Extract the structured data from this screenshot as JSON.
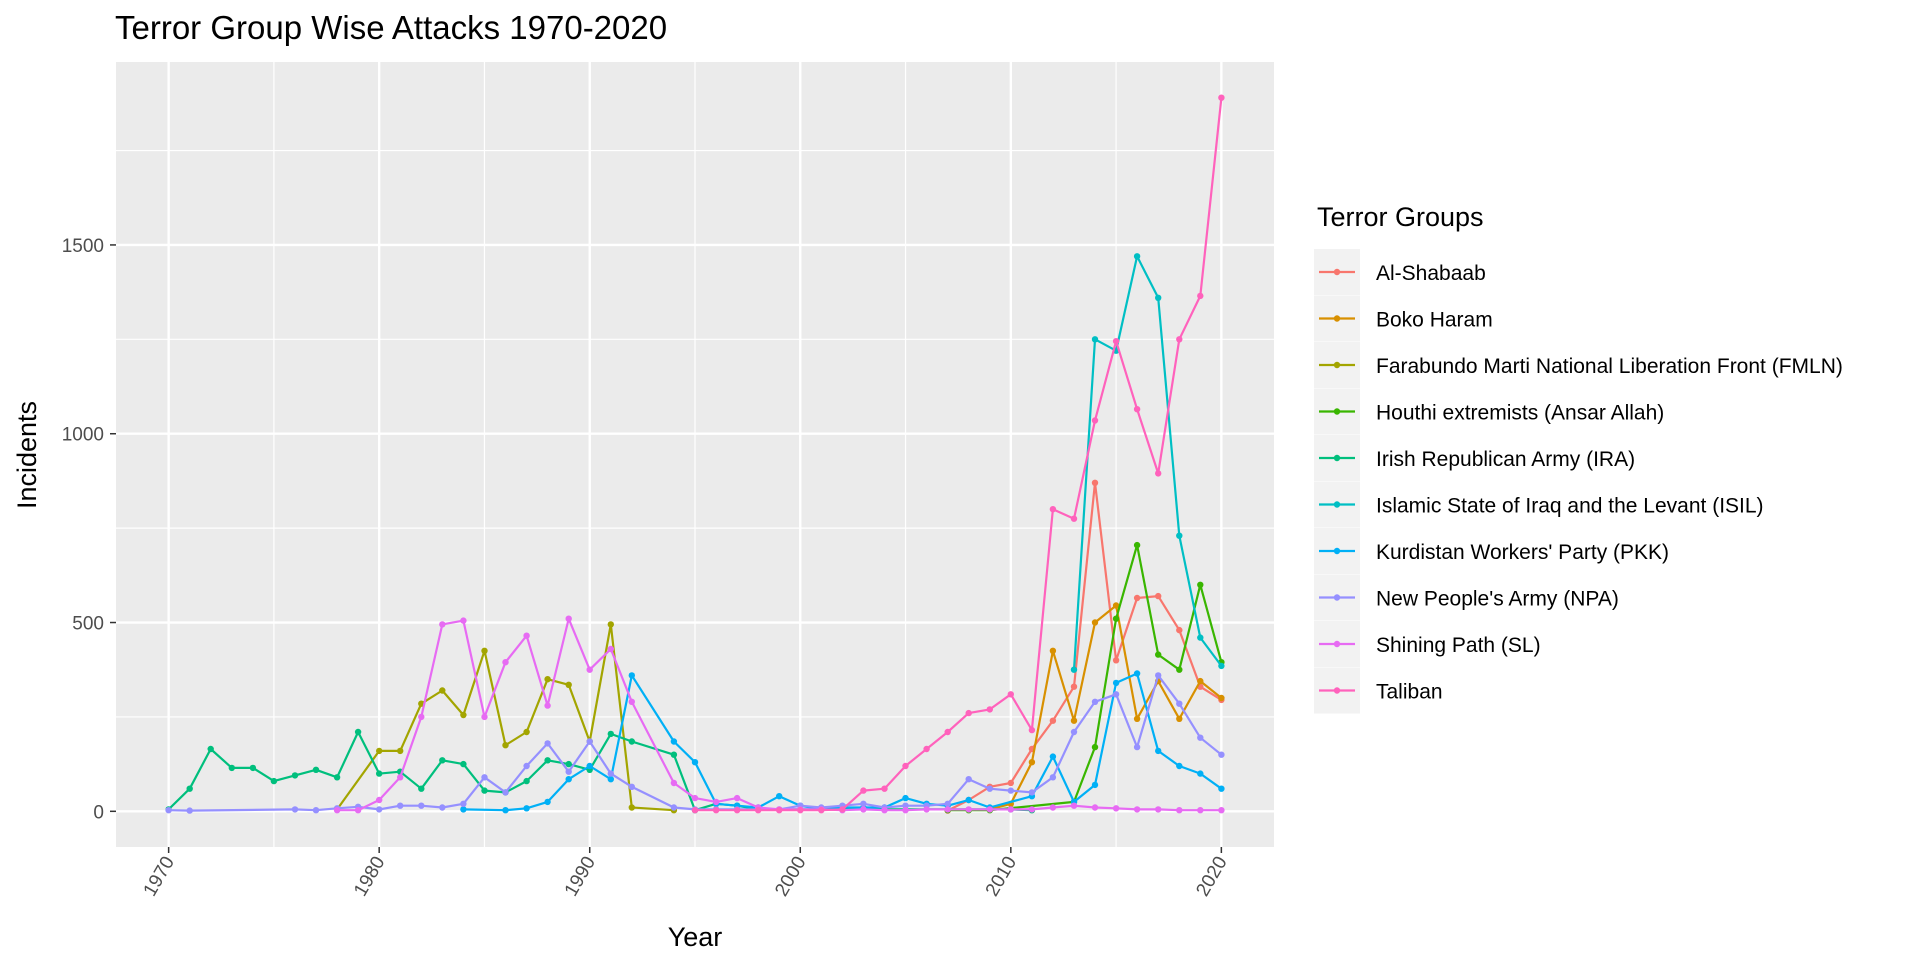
{
  "chart_data": {
    "type": "line",
    "title": "Terror Group Wise Attacks 1970-2020",
    "xlabel": "Year",
    "ylabel": "Incidents",
    "xlim": [
      1970,
      2020
    ],
    "ylim": [
      0,
      1890
    ],
    "x_ticks": [
      1970,
      1980,
      1990,
      2000,
      2010,
      2020
    ],
    "y_ticks": [
      0,
      500,
      1000,
      1500
    ],
    "grid": true,
    "legend": {
      "title": "Terror Groups",
      "placement": "right"
    },
    "series": [
      {
        "name": "Al-Shabaab",
        "color": "#F8766D",
        "points": [
          [
            2007,
            2
          ],
          [
            2008,
            30
          ],
          [
            2009,
            65
          ],
          [
            2010,
            75
          ],
          [
            2011,
            165
          ],
          [
            2012,
            240
          ],
          [
            2013,
            330
          ],
          [
            2014,
            870
          ],
          [
            2015,
            400
          ],
          [
            2016,
            565
          ],
          [
            2017,
            570
          ],
          [
            2018,
            480
          ],
          [
            2019,
            330
          ],
          [
            2020,
            295
          ]
        ]
      },
      {
        "name": "Boko Haram",
        "color": "#D89000",
        "points": [
          [
            2009,
            5
          ],
          [
            2010,
            20
          ],
          [
            2011,
            130
          ],
          [
            2012,
            425
          ],
          [
            2013,
            240
          ],
          [
            2014,
            500
          ],
          [
            2015,
            545
          ],
          [
            2016,
            245
          ],
          [
            2017,
            345
          ],
          [
            2018,
            245
          ],
          [
            2019,
            345
          ],
          [
            2020,
            300
          ]
        ]
      },
      {
        "name": "Farabundo Marti National Liberation Front (FMLN)",
        "color": "#A3A500",
        "points": [
          [
            1978,
            5
          ],
          [
            1980,
            160
          ],
          [
            1981,
            160
          ],
          [
            1982,
            285
          ],
          [
            1983,
            320
          ],
          [
            1984,
            255
          ],
          [
            1985,
            425
          ],
          [
            1986,
            175
          ],
          [
            1987,
            210
          ],
          [
            1988,
            350
          ],
          [
            1989,
            335
          ],
          [
            1990,
            185
          ],
          [
            1991,
            495
          ],
          [
            1992,
            10
          ],
          [
            1994,
            3
          ]
        ]
      },
      {
        "name": "Houthi extremists (Ansar Allah)",
        "color": "#39B600",
        "points": [
          [
            2007,
            3
          ],
          [
            2008,
            3
          ],
          [
            2009,
            3
          ],
          [
            2013,
            25
          ],
          [
            2014,
            170
          ],
          [
            2015,
            510
          ],
          [
            2016,
            705
          ],
          [
            2017,
            415
          ],
          [
            2018,
            375
          ],
          [
            2019,
            600
          ],
          [
            2020,
            395
          ]
        ]
      },
      {
        "name": "Irish Republican Army (IRA)",
        "color": "#00BF7D",
        "points": [
          [
            1970,
            5
          ],
          [
            1971,
            60
          ],
          [
            1972,
            165
          ],
          [
            1973,
            115
          ],
          [
            1974,
            115
          ],
          [
            1975,
            80
          ],
          [
            1976,
            95
          ],
          [
            1977,
            110
          ],
          [
            1978,
            90
          ],
          [
            1979,
            210
          ],
          [
            1980,
            100
          ],
          [
            1981,
            105
          ],
          [
            1982,
            60
          ],
          [
            1983,
            135
          ],
          [
            1984,
            125
          ],
          [
            1985,
            55
          ],
          [
            1986,
            50
          ],
          [
            1987,
            80
          ],
          [
            1988,
            135
          ],
          [
            1989,
            125
          ],
          [
            1990,
            110
          ],
          [
            1991,
            205
          ],
          [
            1992,
            185
          ],
          [
            1994,
            150
          ],
          [
            1995,
            3
          ],
          [
            1996,
            20
          ],
          [
            1997,
            15
          ],
          [
            1998,
            5
          ],
          [
            2010,
            5
          ],
          [
            2011,
            3
          ]
        ]
      },
      {
        "name": "Islamic State of Iraq and the Levant (ISIL)",
        "color": "#00BFC4",
        "points": [
          [
            2013,
            375
          ],
          [
            2014,
            1250
          ],
          [
            2015,
            1220
          ],
          [
            2016,
            1470
          ],
          [
            2017,
            1360
          ],
          [
            2018,
            730
          ],
          [
            2019,
            460
          ],
          [
            2020,
            385
          ]
        ]
      },
      {
        "name": "Kurdistan Workers' Party (PKK)",
        "color": "#00B0F6",
        "points": [
          [
            1984,
            5
          ],
          [
            1986,
            3
          ],
          [
            1987,
            8
          ],
          [
            1988,
            25
          ],
          [
            1989,
            85
          ],
          [
            1990,
            120
          ],
          [
            1991,
            85
          ],
          [
            1992,
            360
          ],
          [
            1994,
            185
          ],
          [
            1995,
            130
          ],
          [
            1996,
            20
          ],
          [
            1997,
            15
          ],
          [
            1998,
            10
          ],
          [
            1999,
            40
          ],
          [
            2000,
            15
          ],
          [
            2001,
            5
          ],
          [
            2002,
            10
          ],
          [
            2003,
            10
          ],
          [
            2004,
            10
          ],
          [
            2005,
            35
          ],
          [
            2006,
            20
          ],
          [
            2007,
            15
          ],
          [
            2008,
            30
          ],
          [
            2009,
            10
          ],
          [
            2011,
            40
          ],
          [
            2012,
            145
          ],
          [
            2013,
            25
          ],
          [
            2014,
            70
          ],
          [
            2015,
            340
          ],
          [
            2016,
            365
          ],
          [
            2017,
            160
          ],
          [
            2018,
            120
          ],
          [
            2019,
            100
          ],
          [
            2020,
            60
          ]
        ]
      },
      {
        "name": "New People's Army (NPA)",
        "color": "#9590FF",
        "points": [
          [
            1970,
            3
          ],
          [
            1971,
            2
          ],
          [
            1976,
            5
          ],
          [
            1977,
            3
          ],
          [
            1978,
            8
          ],
          [
            1979,
            12
          ],
          [
            1980,
            5
          ],
          [
            1981,
            15
          ],
          [
            1982,
            15
          ],
          [
            1983,
            10
          ],
          [
            1984,
            20
          ],
          [
            1985,
            90
          ],
          [
            1986,
            50
          ],
          [
            1987,
            120
          ],
          [
            1988,
            180
          ],
          [
            1989,
            105
          ],
          [
            1990,
            185
          ],
          [
            1991,
            100
          ],
          [
            1992,
            65
          ],
          [
            1994,
            10
          ],
          [
            1995,
            5
          ],
          [
            1996,
            5
          ],
          [
            1997,
            5
          ],
          [
            1998,
            5
          ],
          [
            1999,
            5
          ],
          [
            2000,
            15
          ],
          [
            2001,
            10
          ],
          [
            2002,
            15
          ],
          [
            2003,
            20
          ],
          [
            2004,
            10
          ],
          [
            2005,
            15
          ],
          [
            2006,
            15
          ],
          [
            2007,
            20
          ],
          [
            2008,
            85
          ],
          [
            2009,
            60
          ],
          [
            2010,
            55
          ],
          [
            2011,
            50
          ],
          [
            2012,
            90
          ],
          [
            2013,
            210
          ],
          [
            2014,
            290
          ],
          [
            2015,
            310
          ],
          [
            2016,
            170
          ],
          [
            2017,
            360
          ],
          [
            2018,
            285
          ],
          [
            2019,
            195
          ],
          [
            2020,
            150
          ]
        ]
      },
      {
        "name": "Shining Path (SL)",
        "color": "#E76BF3",
        "points": [
          [
            1978,
            3
          ],
          [
            1979,
            3
          ],
          [
            1980,
            30
          ],
          [
            1981,
            90
          ],
          [
            1982,
            250
          ],
          [
            1983,
            495
          ],
          [
            1984,
            505
          ],
          [
            1985,
            250
          ],
          [
            1986,
            395
          ],
          [
            1987,
            465
          ],
          [
            1988,
            280
          ],
          [
            1989,
            510
          ],
          [
            1990,
            375
          ],
          [
            1991,
            430
          ],
          [
            1992,
            290
          ],
          [
            1994,
            75
          ],
          [
            1995,
            35
          ],
          [
            1996,
            25
          ],
          [
            1997,
            35
          ],
          [
            1998,
            10
          ],
          [
            1999,
            5
          ],
          [
            2000,
            5
          ],
          [
            2001,
            5
          ],
          [
            2002,
            3
          ],
          [
            2003,
            5
          ],
          [
            2004,
            3
          ],
          [
            2005,
            3
          ],
          [
            2006,
            5
          ],
          [
            2007,
            5
          ],
          [
            2008,
            5
          ],
          [
            2009,
            5
          ],
          [
            2010,
            5
          ],
          [
            2011,
            5
          ],
          [
            2012,
            10
          ],
          [
            2013,
            15
          ],
          [
            2014,
            10
          ],
          [
            2015,
            8
          ],
          [
            2016,
            5
          ],
          [
            2017,
            5
          ],
          [
            2018,
            3
          ],
          [
            2019,
            3
          ],
          [
            2020,
            3
          ]
        ]
      },
      {
        "name": "Taliban",
        "color": "#FF62BC",
        "points": [
          [
            1995,
            3
          ],
          [
            1996,
            3
          ],
          [
            1997,
            3
          ],
          [
            1998,
            3
          ],
          [
            1999,
            3
          ],
          [
            2000,
            3
          ],
          [
            2001,
            3
          ],
          [
            2002,
            5
          ],
          [
            2003,
            55
          ],
          [
            2004,
            60
          ],
          [
            2005,
            120
          ],
          [
            2006,
            165
          ],
          [
            2007,
            210
          ],
          [
            2008,
            260
          ],
          [
            2009,
            270
          ],
          [
            2010,
            310
          ],
          [
            2011,
            215
          ],
          [
            2012,
            800
          ],
          [
            2013,
            775
          ],
          [
            2014,
            1035
          ],
          [
            2015,
            1245
          ],
          [
            2016,
            1065
          ],
          [
            2017,
            895
          ],
          [
            2018,
            1250
          ],
          [
            2019,
            1365
          ],
          [
            2020,
            1890
          ]
        ]
      }
    ]
  }
}
